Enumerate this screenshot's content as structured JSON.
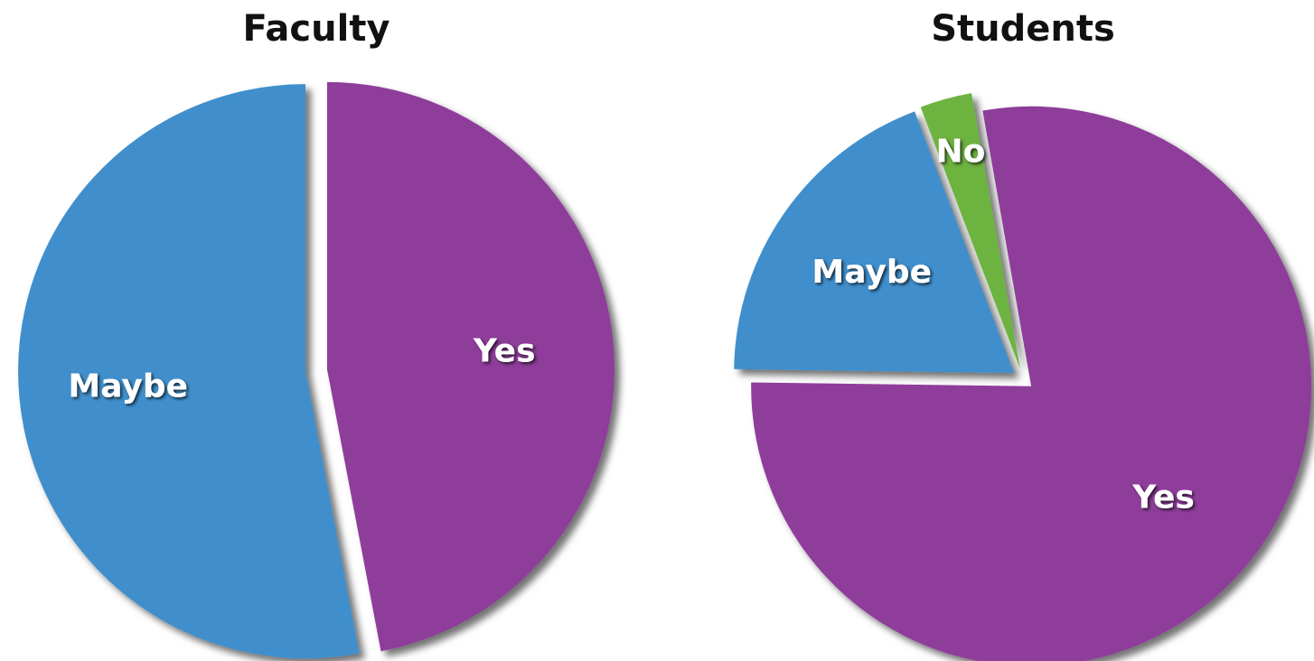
{
  "chart_data": [
    {
      "type": "pie",
      "title": "Faculty",
      "categories": [
        "Yes",
        "Maybe"
      ],
      "values": [
        47,
        53
      ],
      "colors": [
        "#8e3d9a",
        "#3f8fcc"
      ]
    },
    {
      "type": "pie",
      "title": "Students",
      "categories": [
        "Yes",
        "Maybe",
        "No"
      ],
      "values": [
        78,
        19,
        3
      ],
      "colors": [
        "#8e3d9a",
        "#3f8fcc",
        "#6db33f"
      ]
    }
  ]
}
